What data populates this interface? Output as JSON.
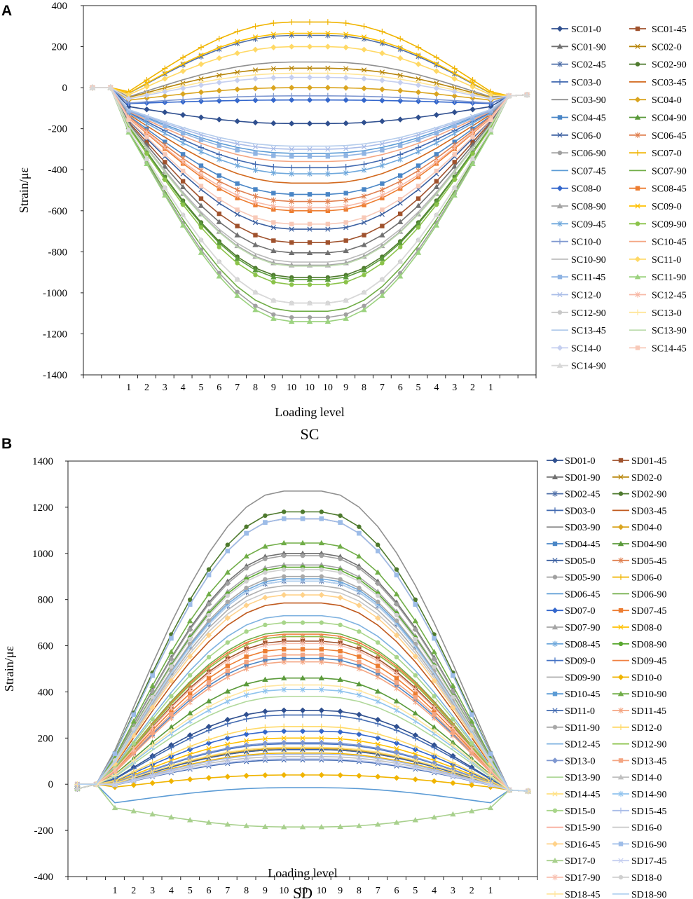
{
  "chart_data": [
    {
      "type": "line",
      "panel": "A",
      "title": "SC",
      "xlabel": "Loading level",
      "ylabel": "Strain/με",
      "ylim": [
        -1400,
        400
      ],
      "yticks": [
        400,
        200,
        0,
        -200,
        -400,
        -600,
        -800,
        -1000,
        -1200,
        -1400
      ],
      "categories": [
        "",
        "",
        "1",
        "2",
        "3",
        "4",
        "5",
        "6",
        "7",
        "8",
        "9",
        "10",
        "10",
        "10",
        "9",
        "8",
        "7",
        "6",
        "5",
        "4",
        "3",
        "2",
        "1",
        "",
        ""
      ],
      "series": [
        {
          "name": "SC01-0",
          "color": "#2F4F8F",
          "marker": "diamond",
          "peak": -175
        },
        {
          "name": "SC01-45",
          "color": "#A0522D",
          "marker": "square",
          "peak": -755
        },
        {
          "name": "SC01-90",
          "color": "#707070",
          "marker": "triangle",
          "peak": -805
        },
        {
          "name": "SC02-0",
          "color": "#B8860B",
          "marker": "x",
          "peak": 95
        },
        {
          "name": "SC02-45",
          "color": "#4F6FA8",
          "marker": "asterisk",
          "peak": 255
        },
        {
          "name": "SC02-90",
          "color": "#4E7A2E",
          "marker": "circle",
          "peak": -925
        },
        {
          "name": "SC03-0",
          "color": "#4169B0",
          "marker": "plus",
          "peak": -390
        },
        {
          "name": "SC03-45",
          "color": "#D2691E",
          "marker": "none",
          "peak": -465
        },
        {
          "name": "SC03-90",
          "color": "#909090",
          "marker": "none",
          "peak": 125
        },
        {
          "name": "SC04-0",
          "color": "#DAA520",
          "marker": "diamond",
          "peak": 0
        },
        {
          "name": "SC04-45",
          "color": "#4A86C6",
          "marker": "square",
          "peak": -520
        },
        {
          "name": "SC04-90",
          "color": "#5A9A3A",
          "marker": "triangle",
          "peak": -935
        },
        {
          "name": "SC06-0",
          "color": "#3A5FA0",
          "marker": "x",
          "peak": -690
        },
        {
          "name": "SC06-45",
          "color": "#E08050",
          "marker": "asterisk",
          "peak": -555
        },
        {
          "name": "SC06-90",
          "color": "#A0A0A0",
          "marker": "circle",
          "peak": -1120
        },
        {
          "name": "SC07-0",
          "color": "#F0B400",
          "marker": "plus",
          "peak": 320
        },
        {
          "name": "SC07-45",
          "color": "#5B9BD5",
          "marker": "none",
          "peak": -320
        },
        {
          "name": "SC07-90",
          "color": "#70AD47",
          "marker": "none",
          "peak": -1090
        },
        {
          "name": "SC08-0",
          "color": "#3366CC",
          "marker": "diamond",
          "peak": -60
        },
        {
          "name": "SC08-45",
          "color": "#ED7D31",
          "marker": "square",
          "peak": -600
        },
        {
          "name": "SC08-90",
          "color": "#A5A5A5",
          "marker": "triangle",
          "peak": -865
        },
        {
          "name": "SC09-0",
          "color": "#FFC000",
          "marker": "x",
          "peak": 265
        },
        {
          "name": "SC09-45",
          "color": "#6FA8DC",
          "marker": "asterisk",
          "peak": -420
        },
        {
          "name": "SC09-90",
          "color": "#8BC34A",
          "marker": "circle",
          "peak": -960
        },
        {
          "name": "SC10-0",
          "color": "#7E97D0",
          "marker": "plus",
          "peak": -40
        },
        {
          "name": "SC10-45",
          "color": "#F4A582",
          "marker": "none",
          "peak": -360
        },
        {
          "name": "SC10-90",
          "color": "#B8B8B8",
          "marker": "none",
          "peak": -850
        },
        {
          "name": "SC11-0",
          "color": "#FFD966",
          "marker": "diamond",
          "peak": 200
        },
        {
          "name": "SC11-45",
          "color": "#8FB4E3",
          "marker": "square",
          "peak": -335
        },
        {
          "name": "SC11-90",
          "color": "#9BD27F",
          "marker": "triangle",
          "peak": -1140
        },
        {
          "name": "SC12-0",
          "color": "#A9BCE8",
          "marker": "x",
          "peak": -300
        },
        {
          "name": "SC12-45",
          "color": "#F8B9A6",
          "marker": "asterisk",
          "peak": -585
        },
        {
          "name": "SC12-90",
          "color": "#C8C8C8",
          "marker": "circle",
          "peak": -1050
        },
        {
          "name": "SC13-0",
          "color": "#FFE699",
          "marker": "plus",
          "peak": 70
        },
        {
          "name": "SC13-45",
          "color": "#B4CCEC",
          "marker": "none",
          "peak": -285
        },
        {
          "name": "SC13-90",
          "color": "#BFDDB0",
          "marker": "none",
          "peak": -870
        },
        {
          "name": "SC14-0",
          "color": "#C5CFF0",
          "marker": "diamond",
          "peak": 50
        },
        {
          "name": "SC14-45",
          "color": "#F8C9B8",
          "marker": "square",
          "peak": -665
        },
        {
          "name": "SC14-90",
          "color": "#D8D8D8",
          "marker": "triangle",
          "peak": -1050
        }
      ]
    },
    {
      "type": "line",
      "panel": "B",
      "title": "SD",
      "xlabel": "Loading level",
      "ylabel": "Strain/με",
      "ylim": [
        -400,
        1400
      ],
      "yticks": [
        1400,
        1200,
        1000,
        800,
        600,
        400,
        200,
        0,
        -200,
        -400
      ],
      "categories": [
        "",
        "",
        "1",
        "2",
        "3",
        "4",
        "5",
        "6",
        "7",
        "8",
        "9",
        "10",
        "10",
        "10",
        "9",
        "8",
        "7",
        "6",
        "5",
        "4",
        "3",
        "2",
        "1",
        "",
        ""
      ],
      "series": [
        {
          "name": "SD01-0",
          "color": "#2F4F8F",
          "marker": "diamond",
          "peak": 320
        },
        {
          "name": "SD01-45",
          "color": "#A0522D",
          "marker": "square",
          "peak": 620
        },
        {
          "name": "SD01-90",
          "color": "#707070",
          "marker": "triangle",
          "peak": 1000
        },
        {
          "name": "SD02-0",
          "color": "#B8860B",
          "marker": "x",
          "peak": 150
        },
        {
          "name": "SD02-45",
          "color": "#4F6FA8",
          "marker": "asterisk",
          "peak": 880
        },
        {
          "name": "SD02-90",
          "color": "#4E7A2E",
          "marker": "circle",
          "peak": 1180
        },
        {
          "name": "SD03-0",
          "color": "#4169B0",
          "marker": "plus",
          "peak": 300
        },
        {
          "name": "SD03-45",
          "color": "#C05A1E",
          "marker": "none",
          "peak": 785
        },
        {
          "name": "SD03-90",
          "color": "#909090",
          "marker": "none",
          "peak": 1270
        },
        {
          "name": "SD04-0",
          "color": "#DAA520",
          "marker": "diamond",
          "peak": 155
        },
        {
          "name": "SD04-45",
          "color": "#4A86C6",
          "marker": "square",
          "peak": 545
        },
        {
          "name": "SD04-90",
          "color": "#5A9A3A",
          "marker": "triangle",
          "peak": 460
        },
        {
          "name": "SD05-0",
          "color": "#3A5FA0",
          "marker": "x",
          "peak": 150
        },
        {
          "name": "SD05-45",
          "color": "#E08050",
          "marker": "asterisk",
          "peak": 640
        },
        {
          "name": "SD05-90",
          "color": "#A0A0A0",
          "marker": "circle",
          "peak": 990
        },
        {
          "name": "SD06-0",
          "color": "#F0B400",
          "marker": "plus",
          "peak": 135
        },
        {
          "name": "SD06-45",
          "color": "#5B9BD5",
          "marker": "none",
          "peak": -15
        },
        {
          "name": "SD06-90",
          "color": "#70AD47",
          "marker": "none",
          "peak": 660
        },
        {
          "name": "SD07-0",
          "color": "#3366CC",
          "marker": "diamond",
          "peak": 230
        },
        {
          "name": "SD07-45",
          "color": "#ED7D31",
          "marker": "square",
          "peak": 585
        },
        {
          "name": "SD07-90",
          "color": "#A5A5A5",
          "marker": "triangle",
          "peak": 950
        },
        {
          "name": "SD08-0",
          "color": "#FFC000",
          "marker": "x",
          "peak": 200
        },
        {
          "name": "SD08-45",
          "color": "#6FA8DC",
          "marker": "asterisk",
          "peak": 890
        },
        {
          "name": "SD08-90",
          "color": "#5AA830",
          "marker": "circle",
          "peak": 940
        },
        {
          "name": "SD09-0",
          "color": "#4472C4",
          "marker": "plus",
          "peak": 175
        },
        {
          "name": "SD09-45",
          "color": "#F08040",
          "marker": "none",
          "peak": 650
        },
        {
          "name": "SD09-90",
          "color": "#B0B0B0",
          "marker": "none",
          "peak": 860
        },
        {
          "name": "SD10-0",
          "color": "#F0B400",
          "marker": "diamond",
          "peak": 40
        },
        {
          "name": "SD10-45",
          "color": "#5B9BD5",
          "marker": "square",
          "peak": 1150
        },
        {
          "name": "SD10-90",
          "color": "#70AD47",
          "marker": "triangle",
          "peak": 1045
        },
        {
          "name": "SD11-0",
          "color": "#4169B0",
          "marker": "x",
          "peak": 105
        },
        {
          "name": "SD11-45",
          "color": "#F4A582",
          "marker": "asterisk",
          "peak": 530
        },
        {
          "name": "SD11-90",
          "color": "#A8A8A8",
          "marker": "circle",
          "peak": 900
        },
        {
          "name": "SD12-0",
          "color": "#FFD966",
          "marker": "plus",
          "peak": 250
        },
        {
          "name": "SD12-45",
          "color": "#7FB2E0",
          "marker": "none",
          "peak": 730
        },
        {
          "name": "SD12-90",
          "color": "#8BC34A",
          "marker": "none",
          "peak": 640
        },
        {
          "name": "SD13-0",
          "color": "#7E97D0",
          "marker": "diamond",
          "peak": 180
        },
        {
          "name": "SD13-45",
          "color": "#F4A582",
          "marker": "square",
          "peak": 560
        },
        {
          "name": "SD13-90",
          "color": "#B0D89A",
          "marker": "none",
          "peak": 380
        },
        {
          "name": "SD14-0",
          "color": "#C0C0C0",
          "marker": "triangle",
          "peak": 120
        },
        {
          "name": "SD14-45",
          "color": "#FFE080",
          "marker": "x",
          "peak": 160
        },
        {
          "name": "SD14-90",
          "color": "#8FC3EE",
          "marker": "asterisk",
          "peak": 410
        },
        {
          "name": "SD15-0",
          "color": "#A8D58A",
          "marker": "circle",
          "peak": 700
        },
        {
          "name": "SD15-45",
          "color": "#A9BCE8",
          "marker": "plus",
          "peak": 130
        },
        {
          "name": "SD15-90",
          "color": "#F8A898",
          "marker": "none",
          "peak": 1150
        },
        {
          "name": "SD16-0",
          "color": "#C8C8C8",
          "marker": "none",
          "peak": 840
        },
        {
          "name": "SD16-45",
          "color": "#FFD28A",
          "marker": "diamond",
          "peak": 820
        },
        {
          "name": "SD16-90",
          "color": "#9DBCE8",
          "marker": "square",
          "peak": 1150
        },
        {
          "name": "SD17-0",
          "color": "#A8D08D",
          "marker": "triangle",
          "peak": -185
        },
        {
          "name": "SD17-45",
          "color": "#C5CFF0",
          "marker": "x",
          "peak": 110
        },
        {
          "name": "SD17-90",
          "color": "#F8C0B0",
          "marker": "asterisk",
          "peak": 610
        },
        {
          "name": "SD18-0",
          "color": "#D0D0D0",
          "marker": "circle",
          "peak": 930
        },
        {
          "name": "SD18-45",
          "color": "#FFE6A0",
          "marker": "plus",
          "peak": 430
        },
        {
          "name": "SD18-90",
          "color": "#B4D2F0",
          "marker": "none",
          "peak": 880
        }
      ]
    }
  ]
}
